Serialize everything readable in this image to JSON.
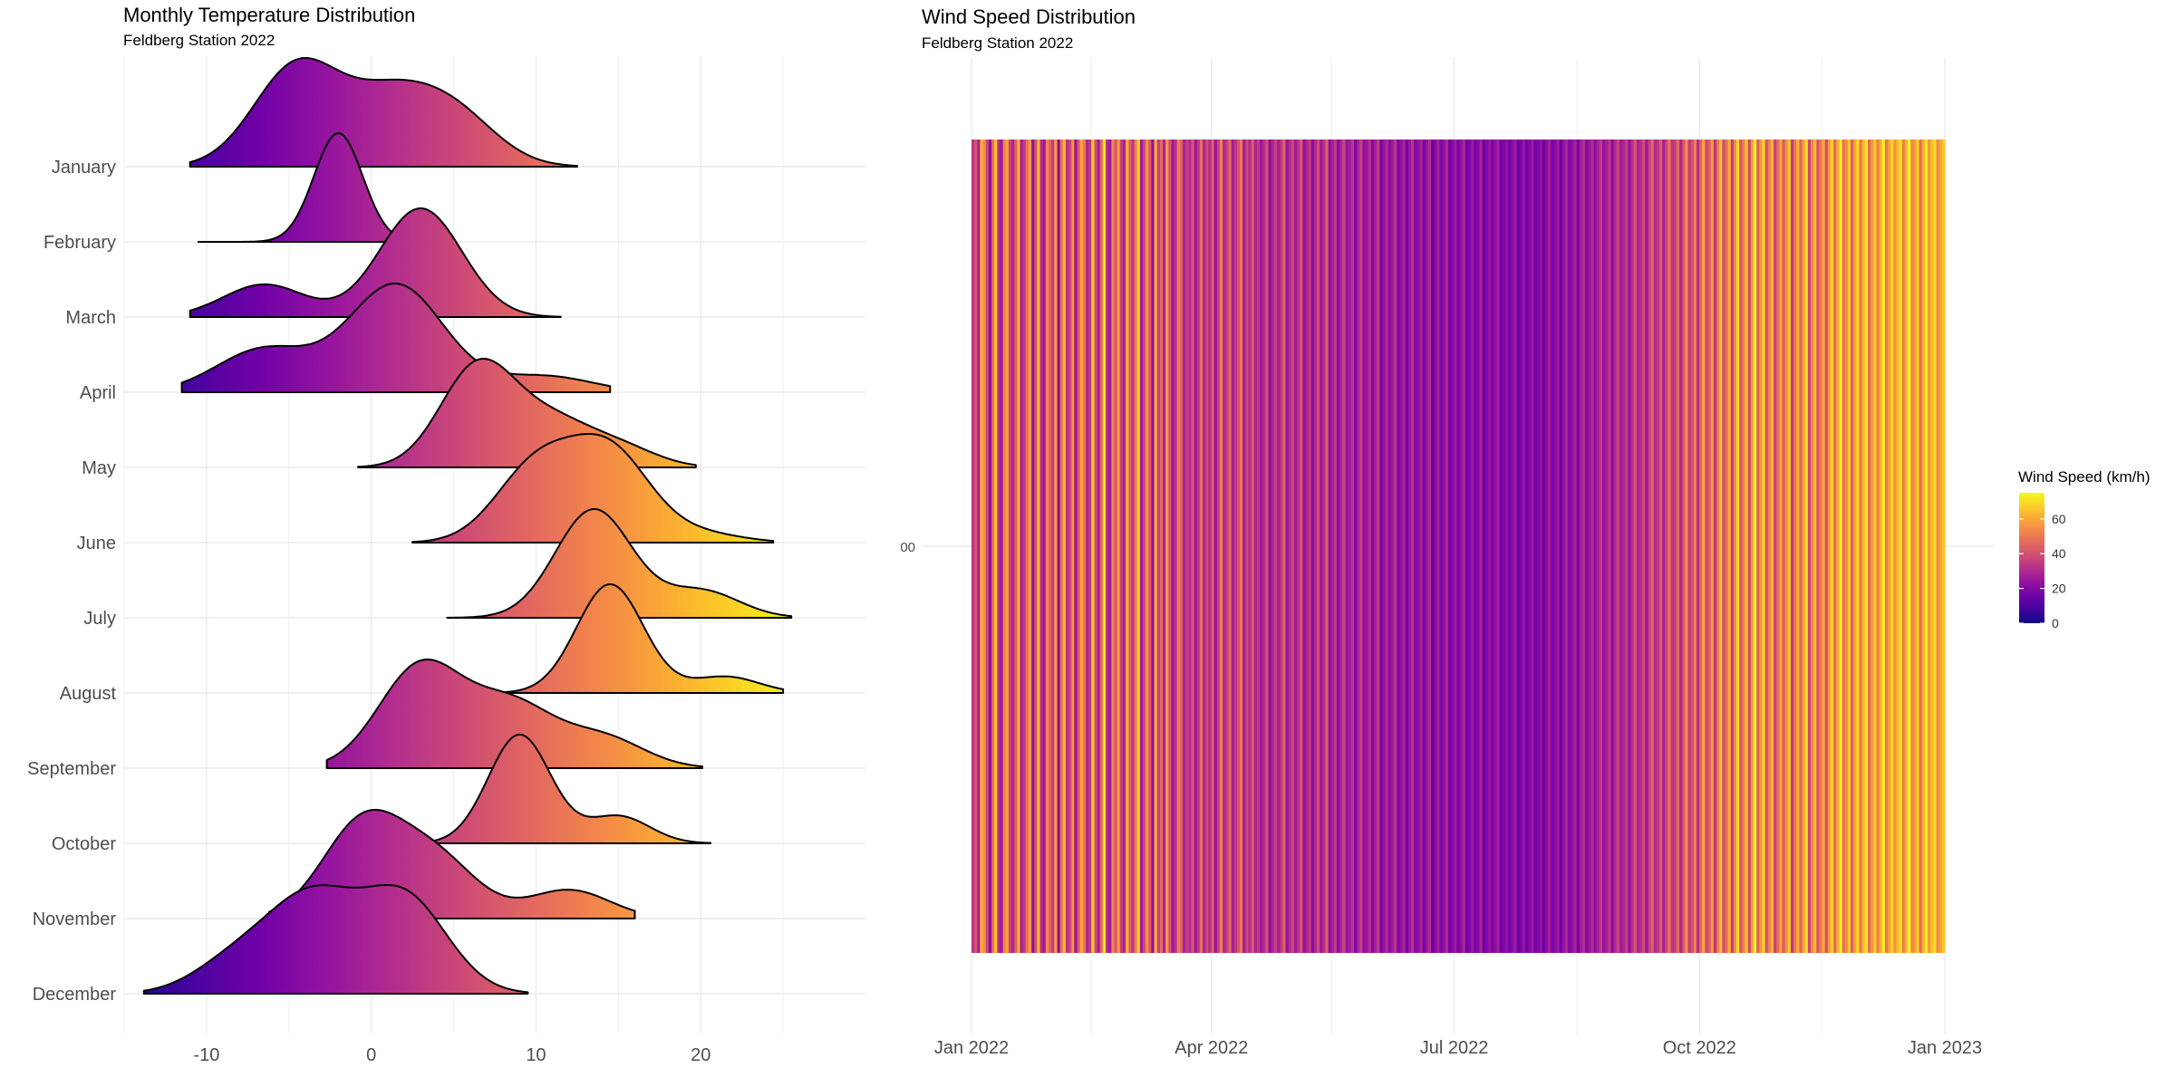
{
  "chart_data": [
    {
      "type": "ridgeline",
      "title": "Monthly Temperature Distribution",
      "subtitle": "Feldberg Station 2022",
      "xlabel": "",
      "ylabel": "",
      "xlim": [
        -15,
        30
      ],
      "x_ticks": [
        -10,
        0,
        10,
        20
      ],
      "x_tick_labels": [
        "-10",
        "0",
        "10",
        "20"
      ],
      "grid": true,
      "fill": "gradient by temperature (plasma palette)",
      "categories": [
        "January",
        "February",
        "March",
        "April",
        "May",
        "June",
        "July",
        "August",
        "September",
        "October",
        "November",
        "December"
      ],
      "series": [
        {
          "name": "January",
          "range": [
            -11,
            12.5
          ],
          "peaks": [
            [
              -4.5,
              1.0
            ],
            [
              1.0,
              0.6
            ],
            [
              5.0,
              0.5
            ]
          ]
        },
        {
          "name": "February",
          "range": [
            -10.5,
            2.8
          ],
          "peaks": [
            [
              -2.0,
              1.0
            ]
          ]
        },
        {
          "name": "March",
          "range": [
            -11,
            11.5
          ],
          "peaks": [
            [
              -6.5,
              0.3
            ],
            [
              3.0,
              1.0
            ]
          ]
        },
        {
          "name": "April",
          "range": [
            -11.5,
            14.5
          ],
          "peaks": [
            [
              -6.5,
              0.4
            ],
            [
              1.5,
              1.0
            ],
            [
              10.5,
              0.15
            ]
          ]
        },
        {
          "name": "May",
          "range": [
            -0.8,
            19.7
          ],
          "peaks": [
            [
              6.5,
              1.0
            ],
            [
              11.0,
              0.4
            ],
            [
              15.0,
              0.2
            ]
          ]
        },
        {
          "name": "June",
          "range": [
            2.5,
            24.4
          ],
          "peaks": [
            [
              10.0,
              0.85
            ],
            [
              14.5,
              1.0
            ],
            [
              20.0,
              0.1
            ]
          ]
        },
        {
          "name": "July",
          "range": [
            4.6,
            25.5
          ],
          "peaks": [
            [
              13.5,
              1.0
            ],
            [
              20.0,
              0.25
            ]
          ]
        },
        {
          "name": "August",
          "range": [
            6.7,
            25.0
          ],
          "peaks": [
            [
              14.5,
              1.0
            ],
            [
              21.5,
              0.15
            ]
          ]
        },
        {
          "name": "September",
          "range": [
            -2.7,
            20.1
          ],
          "peaks": [
            [
              3.0,
              1.0
            ],
            [
              8.5,
              0.6
            ],
            [
              14.0,
              0.3
            ]
          ]
        },
        {
          "name": "October",
          "range": [
            3.5,
            20.6
          ],
          "peaks": [
            [
              9.0,
              1.0
            ],
            [
              15.0,
              0.25
            ]
          ]
        },
        {
          "name": "November",
          "range": [
            -6.2,
            16.0
          ],
          "peaks": [
            [
              -0.5,
              1.0
            ],
            [
              4.0,
              0.6
            ],
            [
              12.0,
              0.3
            ]
          ]
        },
        {
          "name": "December",
          "range": [
            -13.8,
            9.5
          ],
          "peaks": [
            [
              -3.5,
              0.75
            ],
            [
              2.0,
              0.8
            ],
            [
              -8.0,
              0.3
            ]
          ]
        }
      ]
    },
    {
      "type": "heatmap",
      "title": "Wind Speed Distribution",
      "subtitle": "Feldberg Station 2022",
      "xlabel": "",
      "ylabel": "",
      "y_tick_label": "00",
      "x_tick_labels": [
        "Jan 2022",
        "Apr 2022",
        "Jul 2022",
        "Oct 2022",
        "Jan 2023"
      ],
      "x_ticks": [
        "2022-01-01",
        "2022-04-01",
        "2022-07-01",
        "2022-10-01",
        "2023-01-01"
      ],
      "x_range": [
        "2022-01-01",
        "2022-12-31"
      ],
      "legend": {
        "title": "Wind Speed (km/h)",
        "ticks": [
          0,
          20,
          40,
          60
        ],
        "range": [
          0,
          75
        ],
        "position": "right"
      },
      "palette": [
        "#0d0887",
        "#46039f",
        "#7201a8",
        "#9c179e",
        "#bd3786",
        "#d8576b",
        "#ed7953",
        "#fb9f3a",
        "#fdca26",
        "#f0f921"
      ],
      "daily_wind_speed_kmh": [
        33,
        41,
        28,
        62,
        55,
        38,
        22,
        47,
        66,
        31,
        25,
        52,
        58,
        36,
        29,
        44,
        61,
        27,
        34,
        49,
        57,
        23,
        40,
        63,
        30,
        26,
        53,
        45,
        35,
        59,
        21,
        48,
        64,
        32,
        37,
        56,
        24,
        43,
        60,
        50,
        29,
        34,
        67,
        39,
        27,
        46,
        72,
        31,
        25,
        53,
        41,
        58,
        36,
        28,
        62,
        44,
        33,
        50,
        69,
        26,
        38,
        55,
        42,
        23,
        61,
        35,
        47,
        29,
        57,
        40,
        26,
        32,
        51,
        45,
        27,
        36,
        30,
        42,
        25,
        34,
        48,
        28,
        39,
        31,
        44,
        24,
        37,
        52,
        29,
        35,
        46,
        27,
        33,
        41,
        50,
        26,
        38,
        30,
        43,
        28,
        35,
        25,
        31,
        40,
        22,
        29,
        36,
        27,
        33,
        45,
        24,
        30,
        38,
        26,
        32,
        42,
        23,
        28,
        35,
        21,
        30,
        39,
        25,
        32,
        44,
        22,
        27,
        34,
        20,
        29,
        37,
        23,
        26,
        33,
        19,
        28,
        36,
        22,
        25,
        31,
        20,
        27,
        35,
        18,
        24,
        30,
        21,
        26,
        33,
        19,
        23,
        29,
        17,
        25,
        32,
        20,
        22,
        28,
        18,
        24,
        31,
        16,
        21,
        27,
        19,
        23,
        30,
        17,
        20,
        26,
        18,
        22,
        29,
        16,
        19,
        25,
        17,
        21,
        28,
        15,
        20,
        24,
        18,
        22,
        27,
        16,
        19,
        23,
        17,
        21,
        26,
        15,
        18,
        24,
        16,
        20,
        25,
        17,
        19,
        23,
        15,
        22,
        27,
        18,
        21,
        26,
        16,
        24,
        29,
        19,
        23,
        28,
        17,
        26,
        31,
        20,
        25,
        30,
        22,
        28,
        34,
        24,
        27,
        33,
        21,
        30,
        37,
        26,
        29,
        36,
        23,
        32,
        41,
        28,
        31,
        39,
        25,
        35,
        45,
        30,
        33,
        43,
        27,
        38,
        49,
        32,
        36,
        47,
        29,
        42,
        55,
        34,
        40,
        52,
        31,
        46,
        60,
        37,
        44,
        57,
        33,
        50,
        65,
        39,
        48,
        61,
        35,
        54,
        70,
        41,
        52,
        66,
        38,
        58,
        74,
        44,
        56,
        69,
        40,
        51,
        63,
        36,
        47,
        59,
        43,
        55,
        67,
        34,
        49,
        62,
        45,
        58,
        71,
        37,
        53,
        64,
        42,
        50,
        60,
        39,
        57,
        68,
        46,
        61,
        73,
        48,
        54,
        66,
        44,
        59,
        70,
        50,
        63,
        72,
        47,
        56,
        67,
        52,
        60,
        74,
        49,
        58,
        69,
        55,
        64,
        71,
        51,
        62,
        75,
        53,
        57,
        68,
        47,
        61,
        73,
        56,
        65,
        70,
        54,
        59,
        66
      ],
      "notes": "Vertical stripes, one per day; color encodes daily wind speed."
    }
  ]
}
